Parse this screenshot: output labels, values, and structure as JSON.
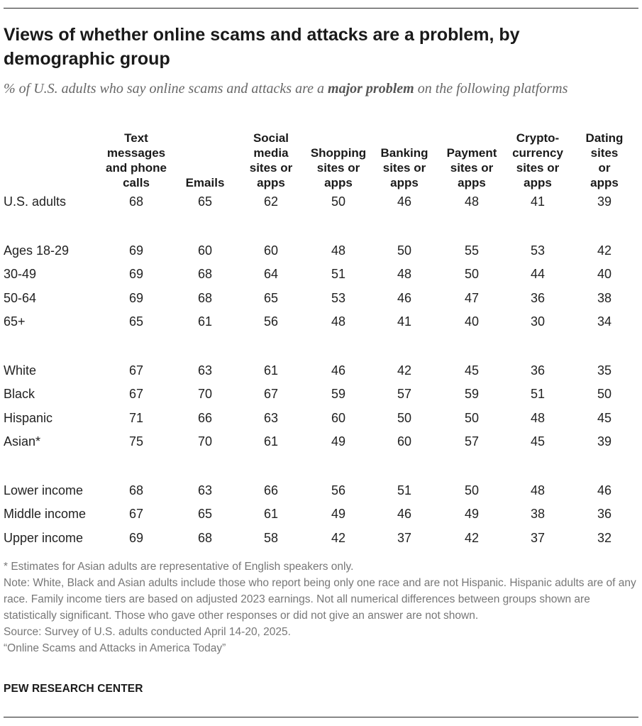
{
  "header": {
    "title": "Views of whether online scams and attacks are a problem, by demographic group",
    "subtitle_before": "% of U.S. adults who say online scams and attacks are a",
    "subtitle_emphasis": "major problem",
    "subtitle_after": "on the following platforms"
  },
  "chart_data": {
    "type": "table",
    "columns": [
      "Text messages and phone calls",
      "Emails",
      "Social media sites or apps",
      "Shopping sites or apps",
      "Banking sites or apps",
      "Payment sites or apps",
      "Crypto-currency sites or apps",
      "Dating sites or apps"
    ],
    "column_display": [
      "Text\nmessages\nand phone\ncalls",
      "Emails",
      "Social\nmedia\nsites or\napps",
      "Shopping\nsites or\napps",
      "Banking\nsites or\napps",
      "Payment\nsites or\napps",
      "Crypto-\ncurrency\nsites or\napps",
      "Dating\nsites or\napps"
    ],
    "groups": [
      {
        "rows": [
          {
            "label": "U.S. adults",
            "values": [
              68,
              65,
              62,
              50,
              46,
              48,
              41,
              39
            ]
          }
        ]
      },
      {
        "rows": [
          {
            "label": "Ages 18-29",
            "values": [
              69,
              60,
              60,
              48,
              50,
              55,
              53,
              42
            ]
          },
          {
            "label": "30-49",
            "values": [
              69,
              68,
              64,
              51,
              48,
              50,
              44,
              40
            ]
          },
          {
            "label": "50-64",
            "values": [
              69,
              68,
              65,
              53,
              46,
              47,
              36,
              38
            ]
          },
          {
            "label": "65+",
            "values": [
              65,
              61,
              56,
              48,
              41,
              40,
              30,
              34
            ]
          }
        ]
      },
      {
        "rows": [
          {
            "label": "White",
            "values": [
              67,
              63,
              61,
              46,
              42,
              45,
              36,
              35
            ]
          },
          {
            "label": "Black",
            "values": [
              67,
              70,
              67,
              59,
              57,
              59,
              51,
              50
            ]
          },
          {
            "label": "Hispanic",
            "values": [
              71,
              66,
              63,
              60,
              50,
              50,
              48,
              45
            ]
          },
          {
            "label": "Asian*",
            "values": [
              75,
              70,
              61,
              49,
              60,
              57,
              45,
              39
            ]
          }
        ]
      },
      {
        "rows": [
          {
            "label": "Lower income",
            "values": [
              68,
              63,
              66,
              56,
              51,
              50,
              48,
              46
            ]
          },
          {
            "label": "Middle income",
            "values": [
              67,
              65,
              61,
              49,
              46,
              49,
              38,
              36
            ]
          },
          {
            "label": "Upper income",
            "values": [
              69,
              68,
              58,
              42,
              37,
              42,
              37,
              32
            ]
          }
        ]
      }
    ]
  },
  "notes": {
    "asterisk": "* Estimates for Asian adults are representative of English speakers only.",
    "note": "Note: White, Black and Asian adults include those who report being only one race and are not Hispanic. Hispanic adults are of any race. Family income tiers are based on adjusted 2023 earnings. Not all numerical differences between groups shown are statistically significant. Those who gave other responses or did not give an answer are not shown.",
    "source": "Source: Survey of U.S. adults conducted April 14-20, 2025.",
    "report": "“Online Scams and Attacks in America Today”"
  },
  "brand": "PEW RESEARCH CENTER"
}
